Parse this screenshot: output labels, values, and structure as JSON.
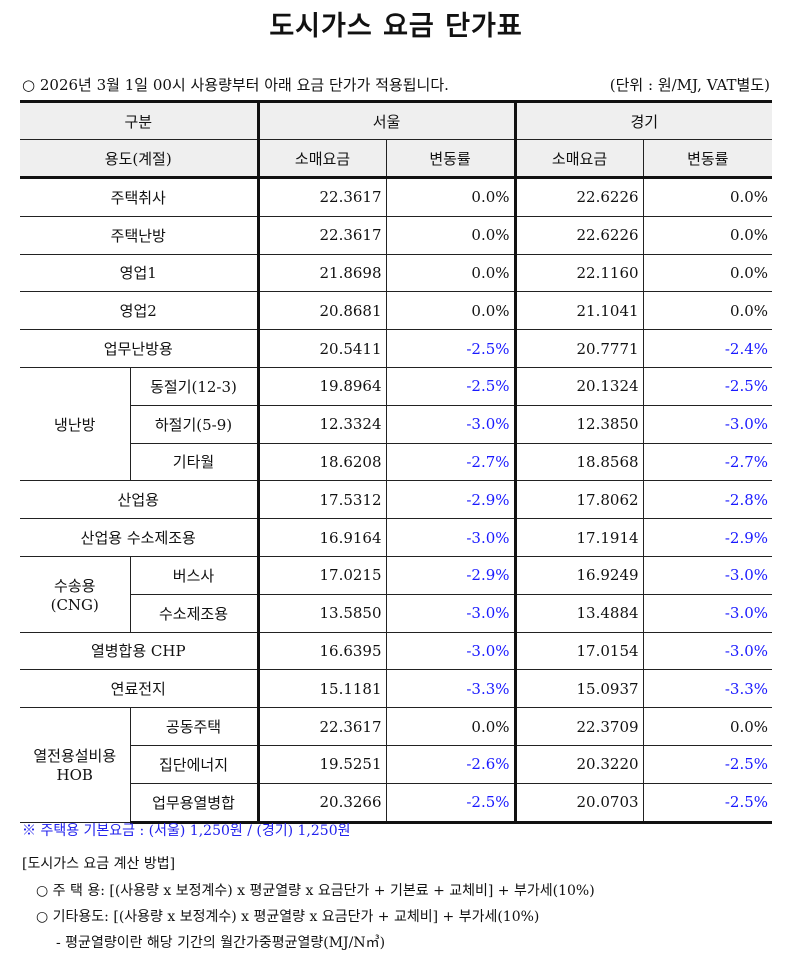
{
  "title": "도시가스 요금 단가표",
  "notice": "○ 2026년 3월 1일 00시 사용량부터 아래 요금 단가가 적용됩니다.",
  "unit": "(단위 : 원/MJ, VAT별도)",
  "header": {
    "category": "구분",
    "seoul": "서울",
    "gyeonggi": "경기",
    "usage": "용도(계절)",
    "price": "소매요금",
    "rate": "변동률"
  },
  "rows": [
    {
      "label": "주택취사",
      "seoul_price": "22.3617",
      "seoul_rate": "0.0%",
      "gg_price": "22.6226",
      "gg_rate": "0.0%"
    },
    {
      "label": "주택난방",
      "seoul_price": "22.3617",
      "seoul_rate": "0.0%",
      "gg_price": "22.6226",
      "gg_rate": "0.0%"
    },
    {
      "label": "영업1",
      "seoul_price": "21.8698",
      "seoul_rate": "0.0%",
      "gg_price": "22.1160",
      "gg_rate": "0.0%"
    },
    {
      "label": "영업2",
      "seoul_price": "20.8681",
      "seoul_rate": "0.0%",
      "gg_price": "21.1041",
      "gg_rate": "0.0%"
    },
    {
      "label": "업무난방용",
      "seoul_price": "20.5411",
      "seoul_rate": "-2.5%",
      "gg_price": "20.7771",
      "gg_rate": "-2.4%"
    },
    {
      "group": "냉난방",
      "span": 3,
      "label": "동절기(12-3)",
      "seoul_price": "19.8964",
      "seoul_rate": "-2.5%",
      "gg_price": "20.1324",
      "gg_rate": "-2.5%"
    },
    {
      "label": "하절기(5-9)",
      "sub": true,
      "seoul_price": "12.3324",
      "seoul_rate": "-3.0%",
      "gg_price": "12.3850",
      "gg_rate": "-3.0%"
    },
    {
      "label": "기타월",
      "sub": true,
      "seoul_price": "18.6208",
      "seoul_rate": "-2.7%",
      "gg_price": "18.8568",
      "gg_rate": "-2.7%"
    },
    {
      "label": "산업용",
      "seoul_price": "17.5312",
      "seoul_rate": "-2.9%",
      "gg_price": "17.8062",
      "gg_rate": "-2.8%"
    },
    {
      "label": "산업용 수소제조용",
      "seoul_price": "16.9164",
      "seoul_rate": "-3.0%",
      "gg_price": "17.1914",
      "gg_rate": "-2.9%"
    },
    {
      "group": "수송용\n(CNG)",
      "span": 2,
      "label": "버스사",
      "seoul_price": "17.0215",
      "seoul_rate": "-2.9%",
      "gg_price": "16.9249",
      "gg_rate": "-3.0%"
    },
    {
      "label": "수소제조용",
      "sub": true,
      "seoul_price": "13.5850",
      "seoul_rate": "-3.0%",
      "gg_price": "13.4884",
      "gg_rate": "-3.0%"
    },
    {
      "label": "열병합용 CHP",
      "seoul_price": "16.6395",
      "seoul_rate": "-3.0%",
      "gg_price": "17.0154",
      "gg_rate": "-3.0%"
    },
    {
      "label": "연료전지",
      "seoul_price": "15.1181",
      "seoul_rate": "-3.3%",
      "gg_price": "15.0937",
      "gg_rate": "-3.3%"
    },
    {
      "group": "열전용설비용\nHOB",
      "span": 3,
      "label": "공동주택",
      "seoul_price": "22.3617",
      "seoul_rate": "0.0%",
      "gg_price": "22.3709",
      "gg_rate": "0.0%"
    },
    {
      "label": "집단에너지",
      "sub": true,
      "seoul_price": "19.5251",
      "seoul_rate": "-2.6%",
      "gg_price": "20.3220",
      "gg_rate": "-2.5%"
    },
    {
      "label": "업무용열병합",
      "sub": true,
      "seoul_price": "20.3266",
      "seoul_rate": "-2.5%",
      "gg_price": "20.0703",
      "gg_rate": "-2.5%"
    }
  ],
  "footer": {
    "base_fee": "※ 주택용 기본요금 : (서울) 1,250원 / (경기) 1,250원",
    "method_title": "[도시가스 요금 계산 방법]",
    "residential": "○ 주 택 용: [(사용량 x 보정계수) x 평균열량 x 요금단가 + 기본료 + 교체비] + 부가세(10%)",
    "other": "○ 기타용도: [(사용량 x 보정계수) x 평균열량 x 요금단가 + 교체비] + 부가세(10%)",
    "note": "- 평균열량이란 해당 기간의 월간가중평균열량(MJ/N㎥)"
  },
  "colors": {
    "negative": "#1a1aff",
    "note": "#2222ee"
  }
}
